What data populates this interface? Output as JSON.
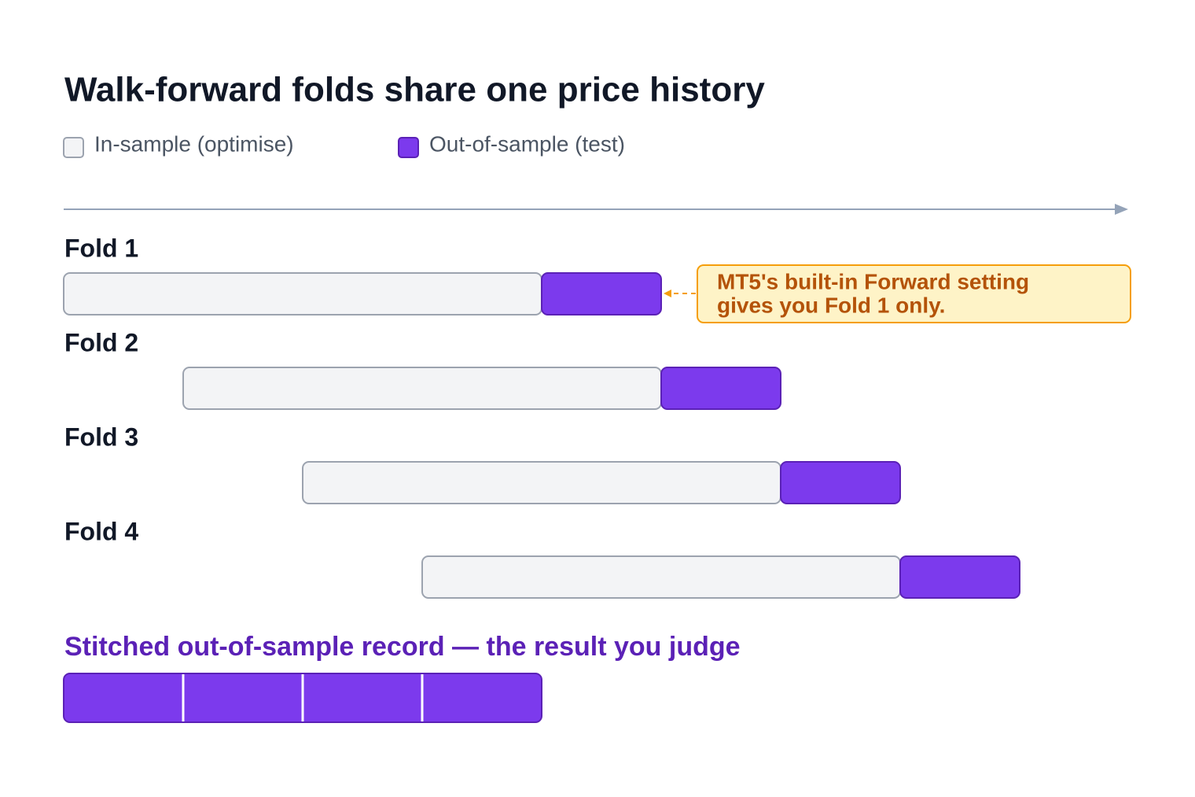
{
  "header": {
    "title": "Walk-forward folds share one price history"
  },
  "legend": [
    "In-sample (optimise)",
    "Out-of-sample (test)"
  ],
  "folds": [
    {
      "label": "Fold 1"
    },
    {
      "label": "Fold 2"
    },
    {
      "label": "Fold 3"
    },
    {
      "label": "Fold 4"
    }
  ],
  "callout": {
    "lines": [
      "MT5's built-in Forward setting",
      "gives you Fold 1 only."
    ]
  },
  "stitched": {
    "label": "Stitched out-of-sample record — the result you judge"
  }
}
